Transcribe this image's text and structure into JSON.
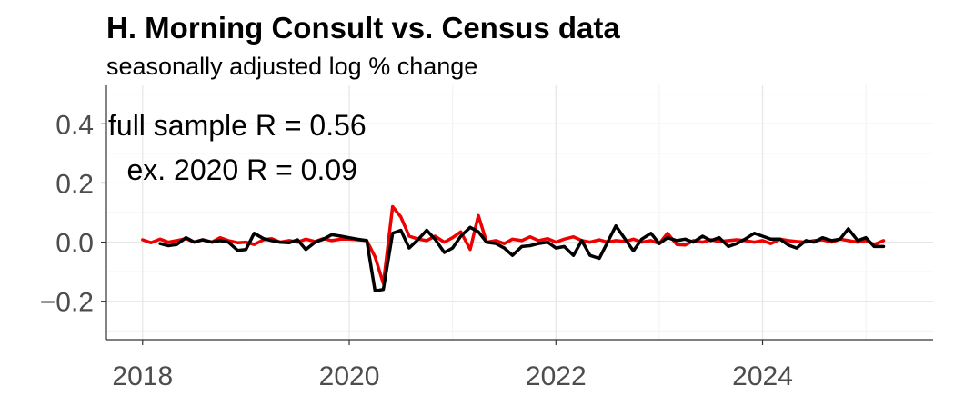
{
  "chart_data": {
    "type": "line",
    "title": "H. Morning Consult vs. Census data",
    "subtitle": "seasonally adjusted log % change",
    "xlim": [
      2017.65,
      2025.65
    ],
    "ylim": [
      -0.33,
      0.53
    ],
    "x_ticks": [
      2018,
      2020,
      2022,
      2024
    ],
    "x_tick_labels": [
      "2018",
      "2020",
      "2022",
      "2024"
    ],
    "y_ticks": [
      -0.2,
      0.0,
      0.2,
      0.4
    ],
    "y_tick_labels": [
      "−0.2",
      "0.0",
      "0.2",
      "0.4"
    ],
    "grid": true,
    "annotations": [
      {
        "text": "full sample R = 0.56",
        "x": 2017.65,
        "y": 0.395
      },
      {
        "text": "ex. 2020 R = 0.09",
        "x": 2017.83,
        "y": 0.245
      }
    ],
    "series": [
      {
        "color": "#ee0000",
        "x": [
          2018.0,
          2018.08,
          2018.17,
          2018.25,
          2018.33,
          2018.42,
          2018.5,
          2018.58,
          2018.67,
          2018.75,
          2018.83,
          2018.92,
          2019.0,
          2019.08,
          2019.17,
          2019.25,
          2019.33,
          2019.42,
          2019.5,
          2019.58,
          2019.67,
          2019.75,
          2019.83,
          2019.92,
          2020.0,
          2020.08,
          2020.17,
          2020.25,
          2020.33,
          2020.42,
          2020.5,
          2020.58,
          2020.67,
          2020.75,
          2020.83,
          2020.92,
          2021.0,
          2021.08,
          2021.17,
          2021.25,
          2021.33,
          2021.42,
          2021.5,
          2021.58,
          2021.67,
          2021.75,
          2021.83,
          2021.92,
          2022.0,
          2022.08,
          2022.17,
          2022.25,
          2022.33,
          2022.42,
          2022.5,
          2022.58,
          2022.67,
          2022.75,
          2022.83,
          2022.92,
          2023.0,
          2023.08,
          2023.17,
          2023.25,
          2023.33,
          2023.42,
          2023.5,
          2023.58,
          2023.67,
          2023.75,
          2023.83,
          2023.92,
          2024.0,
          2024.08,
          2024.17,
          2024.25,
          2024.33,
          2024.42,
          2024.5,
          2024.58,
          2024.67,
          2024.75,
          2024.83,
          2024.92,
          2025.0,
          2025.08,
          2025.17
        ],
        "y": [
          0.008,
          -0.002,
          0.01,
          0.0,
          0.005,
          0.012,
          0.0,
          0.008,
          0.0,
          0.015,
          0.005,
          -0.002,
          0.0,
          -0.008,
          0.008,
          0.012,
          0.0,
          0.005,
          0.0,
          0.01,
          0.002,
          0.012,
          0.005,
          0.01,
          0.01,
          0.008,
          0.005,
          -0.05,
          -0.14,
          0.12,
          0.085,
          0.02,
          0.01,
          0.005,
          0.02,
          0.0,
          0.015,
          0.035,
          -0.025,
          0.09,
          0.0,
          0.005,
          -0.005,
          0.01,
          0.005,
          0.018,
          0.005,
          0.012,
          0.0,
          0.01,
          0.018,
          0.005,
          0.0,
          0.008,
          0.0,
          0.005,
          0.002,
          0.01,
          0.0,
          0.005,
          -0.005,
          0.03,
          -0.008,
          -0.01,
          0.005,
          0.0,
          0.008,
          0.002,
          0.005,
          0.008,
          0.005,
          0.0,
          0.005,
          -0.005,
          0.01,
          0.005,
          0.002,
          0.0,
          0.005,
          0.008,
          0.0,
          0.01,
          0.005,
          0.0,
          0.005,
          -0.008,
          0.005
        ]
      },
      {
        "color": "#000000",
        "x": [
          2018.17,
          2018.25,
          2018.33,
          2018.42,
          2018.5,
          2018.58,
          2018.67,
          2018.75,
          2018.83,
          2018.92,
          2019.0,
          2019.08,
          2019.17,
          2019.25,
          2019.33,
          2019.42,
          2019.5,
          2019.58,
          2019.67,
          2019.75,
          2019.83,
          2019.92,
          2020.0,
          2020.08,
          2020.17,
          2020.25,
          2020.33,
          2020.42,
          2020.5,
          2020.58,
          2020.67,
          2020.75,
          2020.83,
          2020.92,
          2021.0,
          2021.08,
          2021.17,
          2021.25,
          2021.33,
          2021.42,
          2021.5,
          2021.58,
          2021.67,
          2021.75,
          2021.83,
          2021.92,
          2022.0,
          2022.08,
          2022.17,
          2022.25,
          2022.33,
          2022.42,
          2022.5,
          2022.58,
          2022.67,
          2022.75,
          2022.83,
          2022.92,
          2023.0,
          2023.08,
          2023.17,
          2023.25,
          2023.33,
          2023.42,
          2023.5,
          2023.58,
          2023.67,
          2023.75,
          2023.83,
          2023.92,
          2024.0,
          2024.08,
          2024.17,
          2024.25,
          2024.33,
          2024.42,
          2024.5,
          2024.58,
          2024.67,
          2024.75,
          2024.83,
          2024.92,
          2025.0,
          2025.08,
          2025.17
        ],
        "y": [
          -0.005,
          -0.012,
          -0.008,
          0.015,
          0.0,
          0.008,
          0.0,
          0.005,
          0.0,
          -0.028,
          -0.025,
          0.03,
          0.012,
          0.005,
          0.0,
          -0.002,
          0.008,
          -0.025,
          0.0,
          0.01,
          0.025,
          0.02,
          0.015,
          0.01,
          0.005,
          -0.165,
          -0.16,
          0.03,
          0.04,
          -0.02,
          0.01,
          0.04,
          0.01,
          -0.035,
          -0.02,
          0.02,
          0.05,
          0.035,
          0.0,
          -0.005,
          -0.02,
          -0.045,
          -0.015,
          -0.012,
          -0.005,
          0.0,
          -0.02,
          -0.015,
          -0.045,
          0.005,
          -0.045,
          -0.055,
          0.0,
          0.055,
          0.01,
          -0.03,
          0.01,
          0.03,
          -0.005,
          0.015,
          0.005,
          0.01,
          0.0,
          0.02,
          0.005,
          0.015,
          -0.015,
          -0.005,
          0.01,
          0.03,
          0.02,
          0.01,
          0.01,
          -0.01,
          -0.02,
          0.005,
          0.0,
          0.015,
          0.005,
          0.01,
          0.045,
          0.005,
          0.015,
          -0.015,
          -0.015
        ]
      }
    ]
  }
}
